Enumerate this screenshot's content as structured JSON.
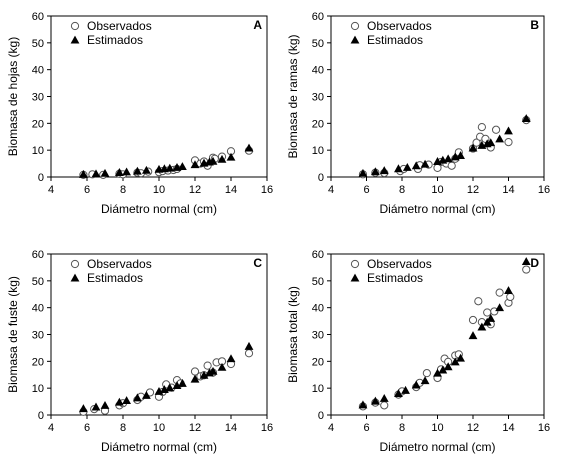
{
  "chart_data": [
    {
      "type": "scatter",
      "panel_label": "A",
      "xlabel": "Diámetro normal (cm)",
      "ylabel": "Biomasa de hojas (kg)",
      "xlim": [
        4,
        16
      ],
      "ylim": [
        0,
        60
      ],
      "xticks": [
        4,
        6,
        8,
        10,
        12,
        14,
        16
      ],
      "yticks": [
        0,
        10,
        20,
        30,
        40,
        50,
        60
      ],
      "legend_position": "top-left",
      "series": [
        {
          "name": "Observados",
          "marker": "open-circle",
          "points": [
            [
              5.8,
              0.8
            ],
            [
              6.3,
              1.0
            ],
            [
              6.9,
              0.8
            ],
            [
              7.8,
              1.2
            ],
            [
              8.0,
              1.0
            ],
            [
              8.8,
              1.6
            ],
            [
              9.0,
              1.4
            ],
            [
              9.4,
              2.0
            ],
            [
              10.0,
              1.8
            ],
            [
              10.2,
              2.2
            ],
            [
              10.5,
              2.4
            ],
            [
              10.8,
              2.6
            ],
            [
              11.0,
              3.0
            ],
            [
              12.0,
              6.2
            ],
            [
              12.3,
              5.0
            ],
            [
              12.5,
              5.8
            ],
            [
              12.7,
              4.2
            ],
            [
              13.0,
              7.2
            ],
            [
              13.1,
              6.8
            ],
            [
              13.5,
              7.6
            ],
            [
              14.0,
              9.6
            ],
            [
              15.0,
              9.8
            ]
          ]
        },
        {
          "name": "Estimados",
          "marker": "filled-triangle",
          "points": [
            [
              5.8,
              1.0
            ],
            [
              6.5,
              1.2
            ],
            [
              7.0,
              1.4
            ],
            [
              7.8,
              1.7
            ],
            [
              8.2,
              1.9
            ],
            [
              8.8,
              2.2
            ],
            [
              9.3,
              2.5
            ],
            [
              10.0,
              2.9
            ],
            [
              10.3,
              3.1
            ],
            [
              10.6,
              3.3
            ],
            [
              11.0,
              3.6
            ],
            [
              11.3,
              3.9
            ],
            [
              12.0,
              4.6
            ],
            [
              12.5,
              5.2
            ],
            [
              12.8,
              5.6
            ],
            [
              13.0,
              5.9
            ],
            [
              13.5,
              6.6
            ],
            [
              14.0,
              7.4
            ],
            [
              15.0,
              10.8
            ]
          ]
        }
      ]
    },
    {
      "type": "scatter",
      "panel_label": "B",
      "xlabel": "Diámetro normal (cm)",
      "ylabel": "Biomasa de ramas (kg)",
      "xlim": [
        4,
        16
      ],
      "ylim": [
        0,
        60
      ],
      "xticks": [
        4,
        6,
        8,
        10,
        12,
        14,
        16
      ],
      "yticks": [
        0,
        10,
        20,
        30,
        40,
        50,
        60
      ],
      "legend_position": "top-left",
      "series": [
        {
          "name": "Observados",
          "marker": "open-circle",
          "points": [
            [
              5.8,
              1.0
            ],
            [
              6.5,
              1.6
            ],
            [
              7.0,
              1.5
            ],
            [
              7.9,
              2.2
            ],
            [
              8.1,
              3.0
            ],
            [
              8.9,
              3.0
            ],
            [
              9.0,
              4.4
            ],
            [
              9.5,
              4.6
            ],
            [
              10.0,
              3.4
            ],
            [
              10.2,
              5.6
            ],
            [
              10.5,
              5.0
            ],
            [
              10.8,
              4.2
            ],
            [
              11.0,
              6.8
            ],
            [
              11.2,
              9.2
            ],
            [
              12.0,
              10.6
            ],
            [
              12.2,
              12.8
            ],
            [
              12.4,
              15.0
            ],
            [
              12.5,
              18.6
            ],
            [
              12.7,
              14.2
            ],
            [
              13.0,
              11.0
            ],
            [
              13.3,
              17.6
            ],
            [
              14.0,
              13.0
            ],
            [
              15.0,
              21.2
            ]
          ]
        },
        {
          "name": "Estimados",
          "marker": "filled-triangle",
          "points": [
            [
              5.8,
              1.4
            ],
            [
              6.5,
              2.0
            ],
            [
              7.0,
              2.4
            ],
            [
              7.8,
              3.1
            ],
            [
              8.3,
              3.6
            ],
            [
              8.8,
              4.2
            ],
            [
              9.3,
              4.8
            ],
            [
              10.0,
              5.8
            ],
            [
              10.3,
              6.3
            ],
            [
              10.6,
              6.8
            ],
            [
              11.0,
              7.5
            ],
            [
              11.3,
              8.0
            ],
            [
              12.0,
              10.8
            ],
            [
              12.5,
              11.8
            ],
            [
              12.8,
              12.4
            ],
            [
              13.0,
              12.8
            ],
            [
              13.5,
              14.2
            ],
            [
              14.0,
              17.2
            ],
            [
              15.0,
              21.8
            ]
          ]
        }
      ]
    },
    {
      "type": "scatter",
      "panel_label": "C",
      "xlabel": "Diámetro normal (cm)",
      "ylabel": "Biomasa de fuste (kg)",
      "xlim": [
        4,
        16
      ],
      "ylim": [
        0,
        60
      ],
      "xticks": [
        4,
        6,
        8,
        10,
        12,
        14,
        16
      ],
      "yticks": [
        0,
        10,
        20,
        30,
        40,
        50,
        60
      ],
      "legend_position": "top-left",
      "series": [
        {
          "name": "Observados",
          "marker": "open-circle",
          "points": [
            [
              5.8,
              1.2
            ],
            [
              6.4,
              2.2
            ],
            [
              7.0,
              1.6
            ],
            [
              7.8,
              3.6
            ],
            [
              8.0,
              4.4
            ],
            [
              8.8,
              5.6
            ],
            [
              9.0,
              6.8
            ],
            [
              9.5,
              8.4
            ],
            [
              10.0,
              6.8
            ],
            [
              10.2,
              8.6
            ],
            [
              10.4,
              11.4
            ],
            [
              10.7,
              10.2
            ],
            [
              11.0,
              13.0
            ],
            [
              11.2,
              11.8
            ],
            [
              12.0,
              16.2
            ],
            [
              12.3,
              14.4
            ],
            [
              12.5,
              14.8
            ],
            [
              12.7,
              18.4
            ],
            [
              13.0,
              15.8
            ],
            [
              13.2,
              19.6
            ],
            [
              13.5,
              20.0
            ],
            [
              14.0,
              19.0
            ],
            [
              15.0,
              23.0
            ]
          ]
        },
        {
          "name": "Estimados",
          "marker": "filled-triangle",
          "points": [
            [
              5.8,
              2.4
            ],
            [
              6.5,
              3.0
            ],
            [
              7.0,
              3.6
            ],
            [
              7.8,
              4.8
            ],
            [
              8.2,
              5.4
            ],
            [
              8.8,
              6.4
            ],
            [
              9.3,
              7.3
            ],
            [
              10.0,
              8.8
            ],
            [
              10.3,
              9.5
            ],
            [
              10.6,
              10.1
            ],
            [
              11.0,
              11.0
            ],
            [
              11.3,
              11.8
            ],
            [
              12.0,
              13.4
            ],
            [
              12.5,
              14.8
            ],
            [
              12.8,
              15.7
            ],
            [
              13.0,
              16.3
            ],
            [
              13.5,
              17.8
            ],
            [
              14.0,
              21.0
            ],
            [
              15.0,
              25.6
            ]
          ]
        }
      ]
    },
    {
      "type": "scatter",
      "panel_label": "D",
      "xlabel": "Diámetro normal (cm)",
      "ylabel": "Biomasa total (kg)",
      "xlim": [
        4,
        16
      ],
      "ylim": [
        0,
        60
      ],
      "xticks": [
        4,
        6,
        8,
        10,
        12,
        14,
        16
      ],
      "yticks": [
        0,
        10,
        20,
        30,
        40,
        50,
        60
      ],
      "legend_position": "top-left",
      "series": [
        {
          "name": "Observados",
          "marker": "open-circle",
          "points": [
            [
              5.8,
              3.2
            ],
            [
              6.5,
              4.6
            ],
            [
              7.0,
              3.6
            ],
            [
              7.8,
              7.6
            ],
            [
              8.0,
              8.8
            ],
            [
              8.8,
              10.4
            ],
            [
              9.0,
              12.0
            ],
            [
              9.4,
              15.6
            ],
            [
              10.0,
              13.8
            ],
            [
              10.2,
              17.0
            ],
            [
              10.4,
              21.0
            ],
            [
              10.6,
              19.8
            ],
            [
              11.0,
              22.2
            ],
            [
              11.2,
              22.6
            ],
            [
              12.0,
              35.4
            ],
            [
              12.3,
              42.4
            ],
            [
              12.5,
              34.6
            ],
            [
              12.8,
              38.2
            ],
            [
              13.0,
              33.8
            ],
            [
              13.2,
              38.6
            ],
            [
              13.5,
              45.6
            ],
            [
              14.0,
              41.8
            ],
            [
              14.1,
              44.0
            ],
            [
              15.0,
              54.2
            ]
          ]
        },
        {
          "name": "Estimados",
          "marker": "filled-triangle",
          "points": [
            [
              5.8,
              3.8
            ],
            [
              6.5,
              5.2
            ],
            [
              7.0,
              6.2
            ],
            [
              7.8,
              8.0
            ],
            [
              8.2,
              9.2
            ],
            [
              8.8,
              11.2
            ],
            [
              9.3,
              12.8
            ],
            [
              10.0,
              15.6
            ],
            [
              10.3,
              16.8
            ],
            [
              10.6,
              18.0
            ],
            [
              11.0,
              19.8
            ],
            [
              11.3,
              21.2
            ],
            [
              12.0,
              29.6
            ],
            [
              12.5,
              32.8
            ],
            [
              12.8,
              34.6
            ],
            [
              13.0,
              36.0
            ],
            [
              13.5,
              40.0
            ],
            [
              14.0,
              46.4
            ],
            [
              15.0,
              57.2
            ]
          ]
        }
      ]
    }
  ]
}
